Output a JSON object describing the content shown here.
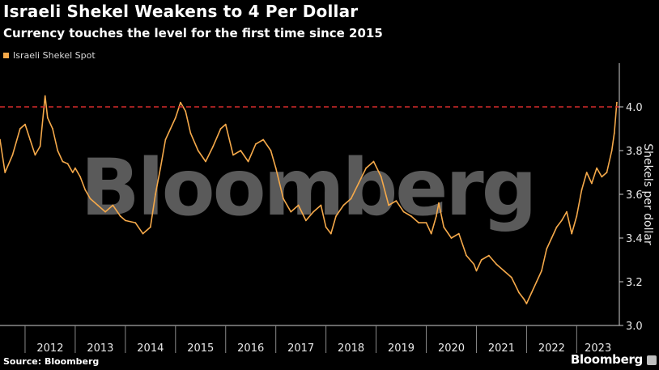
{
  "header": {
    "title": "Israeli Shekel Weakens to 4 Per Dollar",
    "subtitle": "Currency touches the level for the first time since 2015"
  },
  "legend": {
    "label": "Israeli Shekel Spot",
    "color": "#f5a94a"
  },
  "footer": {
    "source": "Source: Bloomberg",
    "brand": "Bloomberg"
  },
  "watermark": "Bloomberg",
  "colors": {
    "line": "#f5a94a",
    "reference": "#d62b2b",
    "axis": "#cfcfcf",
    "watermark": "#5a5a5a"
  },
  "chart_data": {
    "type": "line",
    "title": "Israeli Shekel Weakens to 4 Per Dollar",
    "subtitle": "Currency touches the level for the first time since 2015",
    "ylabel": "Shekels per dollar",
    "xlabel": "",
    "ylim": [
      3.0,
      4.2
    ],
    "xlim": [
      2011.5,
      2023.85
    ],
    "y_ticks": [
      3.0,
      3.2,
      3.4,
      3.6,
      3.8,
      4.0
    ],
    "y_tick_labels": [
      "3.0",
      "3.2",
      "3.4",
      "3.6",
      "3.8",
      "4.0"
    ],
    "x_tick_labels": [
      "2012",
      "2013",
      "2014",
      "2015",
      "2016",
      "2017",
      "2018",
      "2019",
      "2020",
      "2021",
      "2022",
      "2023"
    ],
    "reference_line": {
      "y": 4.0,
      "style": "dashed"
    },
    "grid": false,
    "legend_position": "top-left",
    "series": [
      {
        "name": "Israeli Shekel Spot",
        "x": [
          2011.5,
          2011.6,
          2011.75,
          2011.9,
          2012.0,
          2012.1,
          2012.2,
          2012.3,
          2012.4,
          2012.45,
          2012.55,
          2012.65,
          2012.75,
          2012.85,
          2012.95,
          2013.0,
          2013.1,
          2013.2,
          2013.3,
          2013.45,
          2013.6,
          2013.75,
          2013.9,
          2014.0,
          2014.2,
          2014.35,
          2014.5,
          2014.6,
          2014.7,
          2014.8,
          2014.9,
          2015.0,
          2015.1,
          2015.2,
          2015.3,
          2015.45,
          2015.6,
          2015.75,
          2015.9,
          2016.0,
          2016.15,
          2016.3,
          2016.45,
          2016.6,
          2016.75,
          2016.9,
          2017.0,
          2017.15,
          2017.3,
          2017.45,
          2017.6,
          2017.75,
          2017.9,
          2018.0,
          2018.1,
          2018.2,
          2018.35,
          2018.5,
          2018.65,
          2018.8,
          2018.95,
          2019.1,
          2019.25,
          2019.4,
          2019.55,
          2019.7,
          2019.85,
          2020.0,
          2020.1,
          2020.2,
          2020.25,
          2020.35,
          2020.5,
          2020.65,
          2020.8,
          2020.95,
          2021.0,
          2021.1,
          2021.25,
          2021.4,
          2021.55,
          2021.7,
          2021.85,
          2021.95,
          2022.0,
          2022.1,
          2022.2,
          2022.3,
          2022.4,
          2022.5,
          2022.6,
          2022.7,
          2022.8,
          2022.9,
          2023.0,
          2023.1,
          2023.2,
          2023.3,
          2023.4,
          2023.5,
          2023.6,
          2023.7,
          2023.75,
          2023.8
        ],
        "y": [
          3.85,
          3.7,
          3.78,
          3.9,
          3.92,
          3.85,
          3.78,
          3.82,
          4.05,
          3.95,
          3.9,
          3.8,
          3.75,
          3.74,
          3.7,
          3.72,
          3.68,
          3.62,
          3.58,
          3.55,
          3.52,
          3.55,
          3.5,
          3.48,
          3.47,
          3.42,
          3.45,
          3.6,
          3.72,
          3.85,
          3.9,
          3.95,
          4.02,
          3.98,
          3.88,
          3.8,
          3.75,
          3.82,
          3.9,
          3.92,
          3.78,
          3.8,
          3.75,
          3.83,
          3.85,
          3.8,
          3.72,
          3.58,
          3.52,
          3.55,
          3.48,
          3.52,
          3.55,
          3.45,
          3.42,
          3.5,
          3.55,
          3.58,
          3.65,
          3.72,
          3.75,
          3.68,
          3.55,
          3.57,
          3.52,
          3.5,
          3.47,
          3.47,
          3.42,
          3.5,
          3.56,
          3.45,
          3.4,
          3.42,
          3.32,
          3.28,
          3.25,
          3.3,
          3.32,
          3.28,
          3.25,
          3.22,
          3.15,
          3.12,
          3.1,
          3.15,
          3.2,
          3.25,
          3.35,
          3.4,
          3.45,
          3.48,
          3.52,
          3.42,
          3.5,
          3.62,
          3.7,
          3.65,
          3.72,
          3.68,
          3.7,
          3.8,
          3.88,
          4.02
        ]
      }
    ]
  }
}
